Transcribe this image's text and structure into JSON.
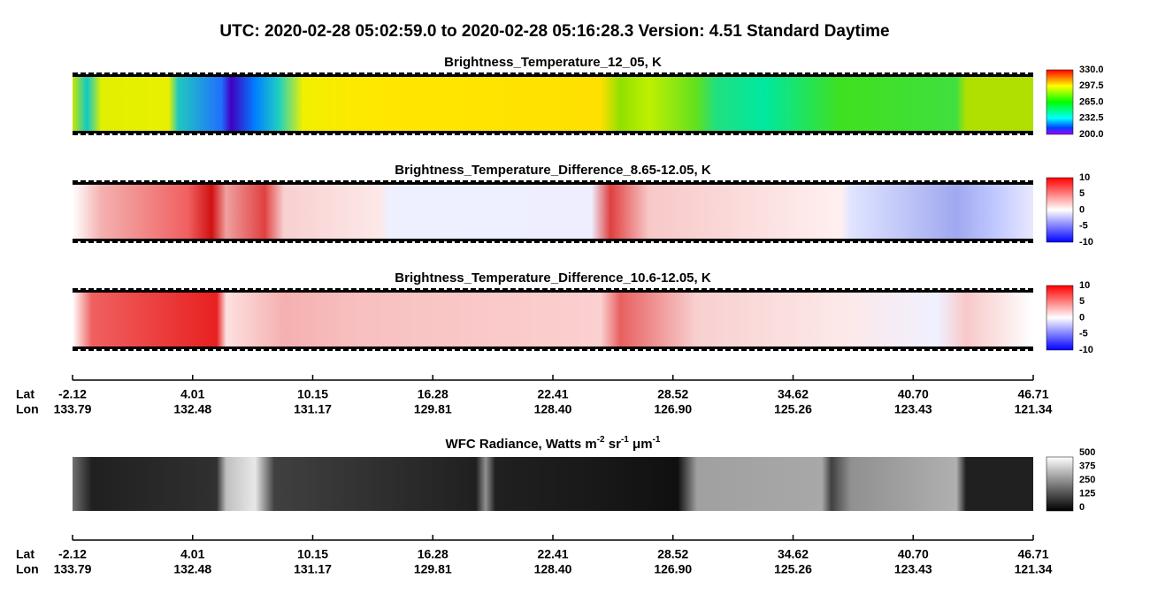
{
  "title": "UTC:  2020-02-28   05:02:59.0  to  2020-02-28   05:16:28.3    Version: 4.51  Standard Daytime",
  "panels": [
    {
      "title": "Brightness_Temperature_12_05, K",
      "colorbar": [
        "330.0",
        "297.5",
        "265.0",
        "232.5",
        "200.0"
      ]
    },
    {
      "title": "Brightness_Temperature_Difference_8.65-12.05, K",
      "colorbar": [
        "10",
        "5",
        "0",
        "-5",
        "-10"
      ]
    },
    {
      "title": "Brightness_Temperature_Difference_10.6-12.05, K",
      "colorbar": [
        "10",
        "5",
        "0",
        "-5",
        "-10"
      ]
    }
  ],
  "axis": {
    "lat_label": "Lat",
    "lon_label": "Lon",
    "lat": [
      "-2.12",
      "4.01",
      "10.15",
      "16.28",
      "22.41",
      "28.52",
      "34.62",
      "40.70",
      "46.71"
    ],
    "lon": [
      "133.79",
      "132.48",
      "131.17",
      "129.81",
      "128.40",
      "126.90",
      "125.26",
      "123.43",
      "121.34"
    ]
  },
  "radiance": {
    "title_parts": [
      "WFC Radiance, Watts m",
      "-2",
      " sr",
      "-1",
      " μm",
      "-1"
    ],
    "colorbar": [
      "500",
      "375",
      "250",
      "125",
      "0"
    ]
  }
}
